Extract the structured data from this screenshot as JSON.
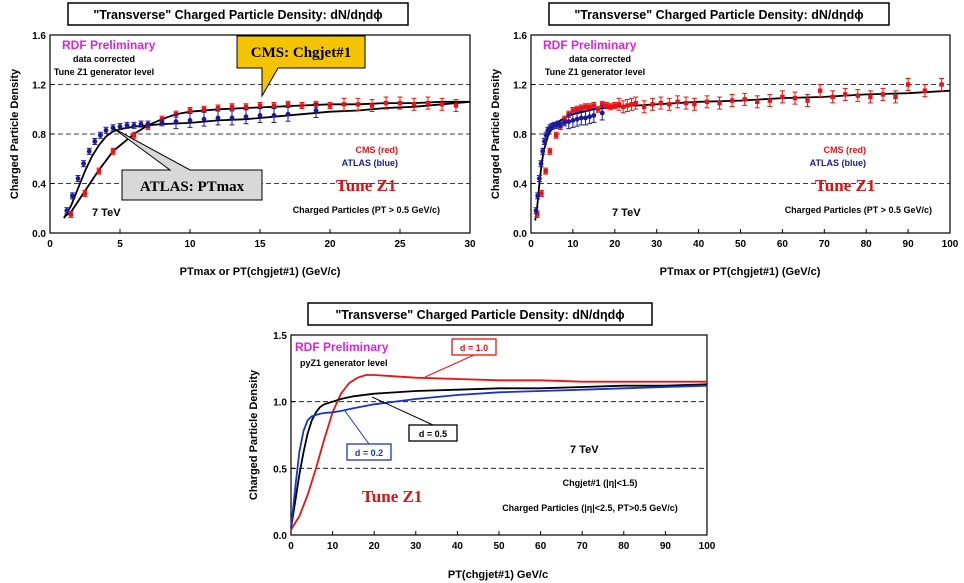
{
  "colors": {
    "cms": "#ee1111",
    "atlas": "#1a1a9a",
    "d10": "#ee1111",
    "d05": "#000000",
    "d02": "#1a33cc",
    "tune": "#e01010",
    "rdf": "#e020e0",
    "callout_cms": "#f5c400",
    "callout_atlas": "#d8d8d8"
  },
  "chart_data": [
    {
      "type": "scatter",
      "title": "\"Transverse\" Charged Particle Density: dN/dηdϕ",
      "xlabel": "PTmax or PT(chgjet#1) (GeV/c)",
      "ylabel": "Charged Particle Density",
      "xlim": [
        0,
        30
      ],
      "ylim": [
        0,
        1.6
      ],
      "xticks": [
        "0",
        "5",
        "10",
        "15",
        "20",
        "25",
        "30"
      ],
      "yticks": [
        "0.0",
        "0.4",
        "0.8",
        "1.2",
        "1.6"
      ],
      "xtick_values": [
        0,
        5,
        10,
        15,
        20,
        25,
        30
      ],
      "ytick_values": [
        0,
        0.4,
        0.8,
        1.2,
        1.6
      ],
      "dashed_y": [
        0.4,
        0.8,
        1.2
      ],
      "texts": {
        "rdf": "RDF Preliminary",
        "data_corrected": "data corrected",
        "generator": "Tune Z1 generator level",
        "cms_legend": "CMS (red)",
        "atlas_legend": "ATLAS (blue)",
        "tune": "Tune Z1",
        "energy": "7 TeV",
        "charged": "Charged Particles (PT > 0.5 GeV/c)",
        "callout_cms": "CMS: Chgjet#1",
        "callout_atlas": "ATLAS: PTmax"
      },
      "series": [
        {
          "name": "CMS (red)",
          "kind": "points",
          "x": [
            1.5,
            2.5,
            3.5,
            4.5,
            6,
            7,
            8,
            9,
            10,
            11,
            12,
            13,
            14,
            15,
            16,
            17,
            18,
            19,
            20,
            21,
            22,
            23,
            24,
            25,
            26,
            27,
            28,
            29
          ],
          "y": [
            0.15,
            0.32,
            0.5,
            0.66,
            0.79,
            0.86,
            0.92,
            0.96,
            0.99,
            1.0,
            1.01,
            1.02,
            1.02,
            1.03,
            1.03,
            1.04,
            1.03,
            1.04,
            1.03,
            1.04,
            1.04,
            1.03,
            1.05,
            1.05,
            1.04,
            1.05,
            1.04,
            1.03
          ]
        },
        {
          "name": "ATLAS (blue)",
          "kind": "points",
          "x": [
            1.2,
            1.6,
            2.0,
            2.4,
            2.8,
            3.2,
            3.6,
            4.0,
            4.5,
            5,
            5.5,
            6,
            6.5,
            7,
            8,
            9,
            10,
            11,
            12,
            13,
            14,
            15,
            16,
            17,
            19
          ],
          "y": [
            0.18,
            0.3,
            0.44,
            0.56,
            0.66,
            0.74,
            0.79,
            0.83,
            0.85,
            0.86,
            0.87,
            0.87,
            0.88,
            0.88,
            0.89,
            0.9,
            0.91,
            0.92,
            0.93,
            0.93,
            0.94,
            0.95,
            0.95,
            0.96,
            0.99
          ]
        },
        {
          "name": "Tune Z1 (Chgjet#1)",
          "kind": "line",
          "x": [
            1.0,
            1.5,
            2.5,
            3.5,
            4.5,
            6,
            7,
            8,
            9,
            10,
            12,
            14,
            16,
            18,
            20,
            22,
            24,
            26,
            28,
            30
          ],
          "y": [
            0.13,
            0.17,
            0.34,
            0.51,
            0.66,
            0.8,
            0.87,
            0.92,
            0.96,
            0.98,
            1.0,
            1.01,
            1.02,
            1.03,
            1.04,
            1.04,
            1.05,
            1.05,
            1.06,
            1.06
          ]
        },
        {
          "name": "Tune Z1 (PTmax)",
          "kind": "line",
          "x": [
            1.0,
            1.5,
            2.0,
            2.5,
            3.0,
            3.5,
            4.0,
            4.5,
            5,
            6,
            7,
            8,
            10,
            12,
            14,
            16,
            18,
            20,
            22,
            24,
            26,
            28,
            30
          ],
          "y": [
            0.12,
            0.22,
            0.36,
            0.5,
            0.62,
            0.71,
            0.78,
            0.82,
            0.84,
            0.86,
            0.87,
            0.88,
            0.89,
            0.91,
            0.92,
            0.94,
            0.96,
            0.98,
            0.99,
            1.01,
            1.02,
            1.04,
            1.06
          ]
        }
      ]
    },
    {
      "type": "scatter",
      "title": "\"Transverse\" Charged Particle Density: dN/dηdϕ",
      "xlabel": "PTmax or PT(chgjet#1) (GeV/c)",
      "ylabel": "Charged Particle Density",
      "xlim": [
        0,
        100
      ],
      "ylim": [
        0,
        1.6
      ],
      "xticks": [
        "0",
        "10",
        "20",
        "30",
        "40",
        "50",
        "60",
        "70",
        "80",
        "90",
        "100"
      ],
      "yticks": [
        "0.0",
        "0.4",
        "0.8",
        "1.2",
        "1.6"
      ],
      "xtick_values": [
        0,
        10,
        20,
        30,
        40,
        50,
        60,
        70,
        80,
        90,
        100
      ],
      "ytick_values": [
        0,
        0.4,
        0.8,
        1.2,
        1.6
      ],
      "dashed_y": [
        0.4,
        0.8,
        1.2
      ],
      "texts": {
        "rdf": "RDF Preliminary",
        "data_corrected": "data corrected",
        "generator": "Tune Z1 generator level",
        "cms_legend": "CMS (red)",
        "atlas_legend": "ATLAS (blue)",
        "tune": "Tune Z1",
        "energy": "7 TeV",
        "charged": "Charged Particles (PT > 0.5 GeV/c)"
      },
      "series": [
        {
          "name": "CMS (red)",
          "kind": "points",
          "x": [
            1.5,
            2.5,
            3.5,
            4.5,
            6,
            7,
            8,
            9,
            10,
            11,
            12,
            13,
            14,
            15,
            16,
            17,
            18,
            19,
            20,
            21,
            22,
            23,
            24,
            25,
            27,
            29,
            31,
            33,
            35,
            37,
            39,
            42,
            45,
            48,
            51,
            54,
            57,
            60,
            63,
            66,
            69,
            72,
            75,
            78,
            81,
            84,
            87,
            90,
            94,
            98
          ],
          "y": [
            0.15,
            0.32,
            0.5,
            0.66,
            0.79,
            0.86,
            0.92,
            0.96,
            0.99,
            1.0,
            1.01,
            1.02,
            1.02,
            1.03,
            1.0,
            1.04,
            1.03,
            1.02,
            1.03,
            1.04,
            1.02,
            1.03,
            1.04,
            1.05,
            1.02,
            1.04,
            1.05,
            1.04,
            1.06,
            1.05,
            1.04,
            1.06,
            1.05,
            1.07,
            1.08,
            1.06,
            1.07,
            1.1,
            1.09,
            1.07,
            1.15,
            1.1,
            1.12,
            1.11,
            1.1,
            1.12,
            1.1,
            1.2,
            1.15,
            1.2
          ]
        },
        {
          "name": "ATLAS (blue)",
          "kind": "points",
          "x": [
            1.2,
            1.6,
            2.0,
            2.4,
            2.8,
            3.2,
            3.6,
            4.0,
            4.5,
            5,
            5.5,
            6,
            6.5,
            7,
            8,
            9,
            10,
            11,
            12,
            13,
            14,
            15,
            17
          ],
          "y": [
            0.18,
            0.3,
            0.44,
            0.56,
            0.66,
            0.74,
            0.79,
            0.83,
            0.85,
            0.86,
            0.87,
            0.87,
            0.88,
            0.88,
            0.89,
            0.9,
            0.91,
            0.92,
            0.93,
            0.93,
            0.94,
            0.95,
            0.97
          ]
        },
        {
          "name": "Tune Z1",
          "kind": "line",
          "x": [
            1.0,
            1.5,
            2,
            2.5,
            3,
            4,
            5,
            6,
            8,
            10,
            15,
            20,
            30,
            40,
            50,
            60,
            70,
            80,
            90,
            100
          ],
          "y": [
            0.1,
            0.22,
            0.4,
            0.55,
            0.66,
            0.78,
            0.85,
            0.89,
            0.93,
            0.96,
            1.0,
            1.02,
            1.04,
            1.06,
            1.07,
            1.09,
            1.1,
            1.12,
            1.13,
            1.15
          ]
        }
      ]
    },
    {
      "type": "line",
      "title": "\"Transverse\" Charged Particle Density: dN/dηdϕ",
      "xlabel": "PT(chgjet#1) GeV/c",
      "ylabel": "Charged Particle Density",
      "xlim": [
        0,
        100
      ],
      "ylim": [
        0,
        1.5
      ],
      "xticks": [
        "0",
        "10",
        "20",
        "30",
        "40",
        "50",
        "60",
        "70",
        "80",
        "90",
        "100"
      ],
      "yticks": [
        "0.0",
        "0.5",
        "1.0",
        "1.5"
      ],
      "xtick_values": [
        0,
        10,
        20,
        30,
        40,
        50,
        60,
        70,
        80,
        90,
        100
      ],
      "ytick_values": [
        0,
        0.5,
        1.0,
        1.5
      ],
      "dashed_y": [
        0.5,
        1.0
      ],
      "texts": {
        "rdf": "RDF Preliminary",
        "generator": "pyZ1 generator level",
        "tune": "Tune Z1",
        "energy": "7 TeV",
        "chgjet": "Chgjet#1 (|η|<1.5)",
        "charged": "Charged Particles (|η|<2.5, PT>0.5 GeV/c)",
        "d10": "d = 1.0",
        "d05": "d = 0.5",
        "d02": "d = 0.2"
      },
      "series": [
        {
          "name": "d = 1.0",
          "kind": "line",
          "x": [
            0,
            2,
            4,
            6,
            8,
            10,
            12,
            14,
            16,
            18,
            20,
            30,
            40,
            50,
            60,
            70,
            80,
            90,
            100
          ],
          "y": [
            0.04,
            0.14,
            0.3,
            0.5,
            0.72,
            0.92,
            1.06,
            1.14,
            1.18,
            1.2,
            1.2,
            1.18,
            1.17,
            1.16,
            1.16,
            1.15,
            1.15,
            1.15,
            1.15
          ]
        },
        {
          "name": "d = 0.5",
          "kind": "line",
          "x": [
            0,
            1,
            2,
            3,
            4,
            5,
            6,
            7,
            8,
            10,
            12,
            15,
            20,
            30,
            40,
            50,
            60,
            70,
            80,
            90,
            100
          ],
          "y": [
            0.05,
            0.25,
            0.45,
            0.62,
            0.76,
            0.86,
            0.92,
            0.96,
            0.98,
            1.0,
            1.02,
            1.04,
            1.06,
            1.08,
            1.09,
            1.1,
            1.1,
            1.11,
            1.12,
            1.12,
            1.13
          ]
        },
        {
          "name": "d = 0.2",
          "kind": "line",
          "x": [
            0,
            1,
            2,
            3,
            4,
            5,
            6,
            7,
            8,
            10,
            12,
            15,
            20,
            30,
            40,
            50,
            60,
            70,
            80,
            90,
            100
          ],
          "y": [
            0.05,
            0.35,
            0.62,
            0.78,
            0.86,
            0.89,
            0.9,
            0.91,
            0.915,
            0.92,
            0.93,
            0.95,
            0.98,
            1.02,
            1.05,
            1.07,
            1.08,
            1.09,
            1.1,
            1.11,
            1.12
          ]
        }
      ]
    }
  ]
}
